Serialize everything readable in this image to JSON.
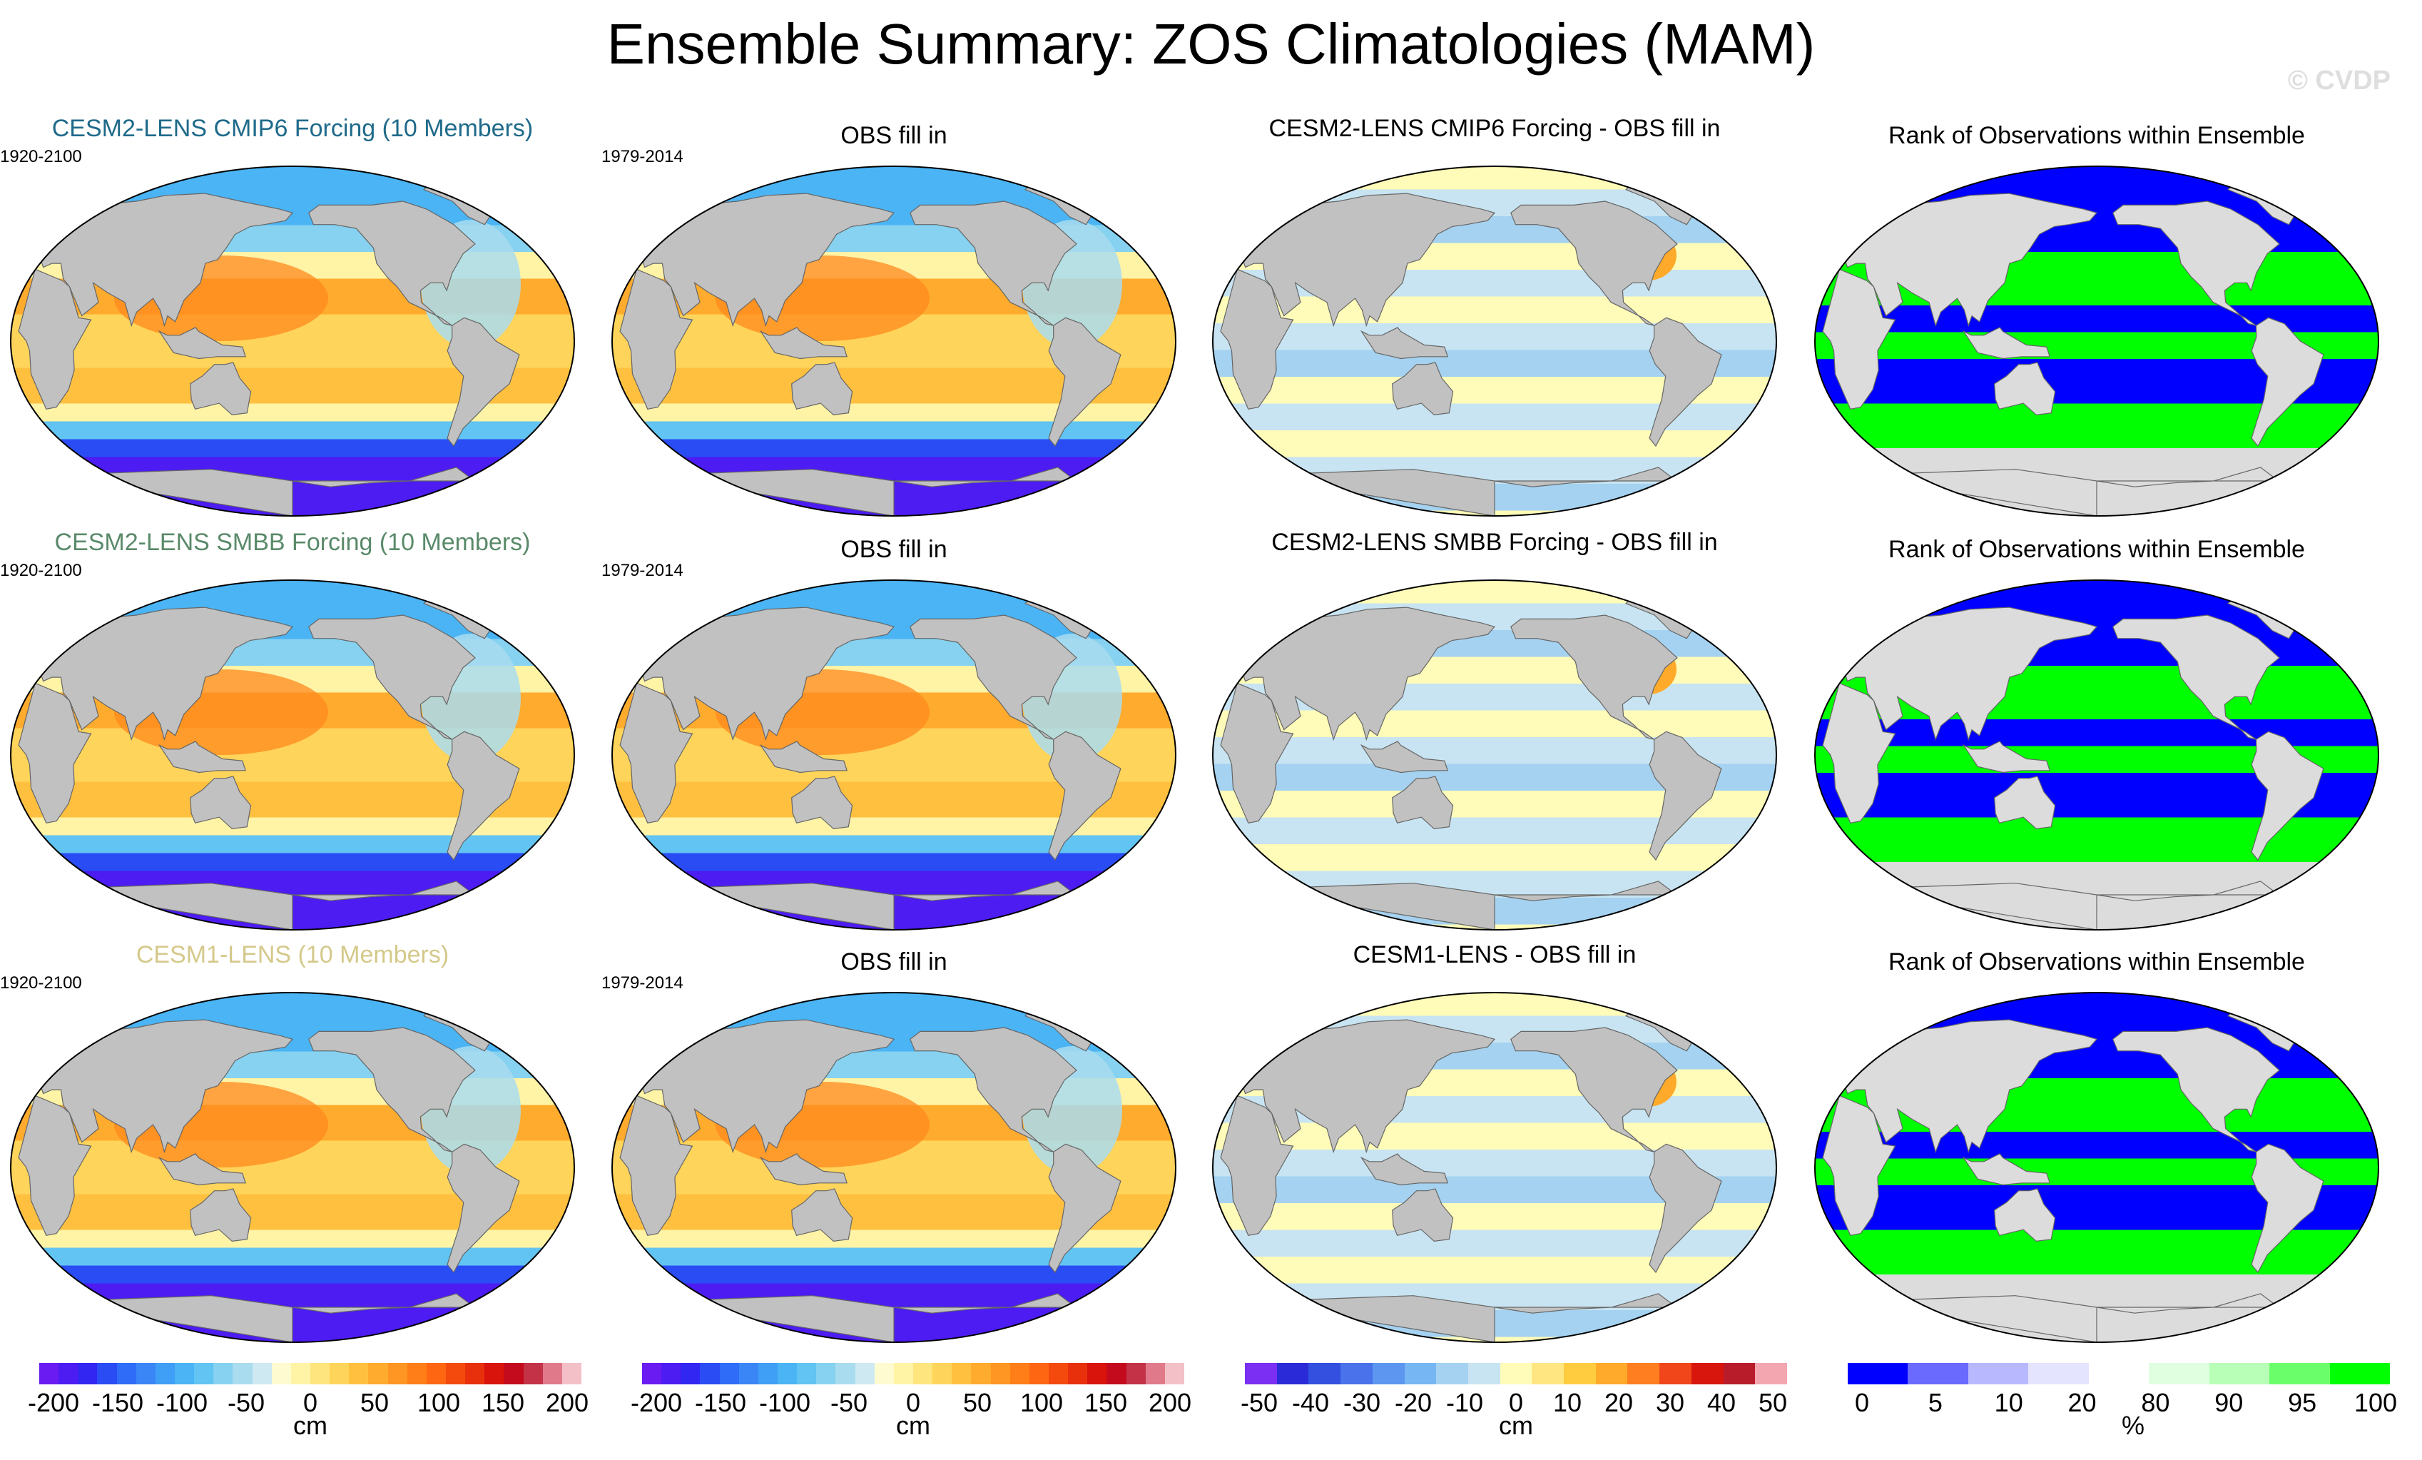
{
  "title": "Ensemble Summary: ZOS Climatologies (MAM)",
  "watermark": "© CVDP",
  "colors": {
    "land": "#c1c1c1",
    "rank_blue": "#0000ff",
    "rank_green": "#00ff00",
    "rank_gray": "#dcdcdc",
    "row1_title": "#1f6a8a",
    "row2_title": "#5a8a6a",
    "row3_title": "#d4c98a"
  },
  "rows": [
    {
      "ensemble": {
        "title": "CESM2-LENS CMIP6 Forcing (10 Members)",
        "period": "1920-2100",
        "color": "#1f6a8a"
      },
      "obs": {
        "title": "OBS fill in",
        "period": "1979-2014"
      },
      "diff": {
        "title": "CESM2-LENS CMIP6 Forcing - OBS fill in"
      },
      "rank": {
        "title": "Rank of Observations within Ensemble"
      }
    },
    {
      "ensemble": {
        "title": "CESM2-LENS SMBB Forcing (10 Members)",
        "period": "1920-2100",
        "color": "#5a8a6a"
      },
      "obs": {
        "title": "OBS fill in",
        "period": "1979-2014"
      },
      "diff": {
        "title": "CESM2-LENS SMBB Forcing - OBS fill in"
      },
      "rank": {
        "title": "Rank of Observations within Ensemble"
      }
    },
    {
      "ensemble": {
        "title": "CESM1-LENS (10 Members)",
        "period": "1920-2100",
        "color": "#d4c98a"
      },
      "obs": {
        "title": "OBS fill in",
        "period": "1979-2014"
      },
      "diff": {
        "title": "CESM1-LENS - OBS fill in"
      },
      "rank": {
        "title": "Rank of Observations within Ensemble"
      }
    }
  ],
  "colorbars": [
    {
      "unit": "cm",
      "ticks": [
        "-200",
        "-150",
        "-100",
        "-50",
        "0",
        "50",
        "100",
        "150",
        "200"
      ],
      "colors": [
        "#6a1bf2",
        "#4c1cf2",
        "#3226f2",
        "#2a4cf5",
        "#2f6cf7",
        "#3a86f7",
        "#3f9ef6",
        "#4ab4f4",
        "#62c4f2",
        "#86d2f0",
        "#a9dcee",
        "#cfe9f3",
        "#fffbd0",
        "#fff3a6",
        "#ffe57d",
        "#ffd45a",
        "#ffc040",
        "#ffab2e",
        "#ff9522",
        "#ff7e18",
        "#ff6612",
        "#f44a0e",
        "#e8300c",
        "#d8140c",
        "#c40b1e",
        "#c43248",
        "#e07a8a",
        "#f4c0c8"
      ]
    },
    {
      "unit": "cm",
      "ticks": [
        "-200",
        "-150",
        "-100",
        "-50",
        "0",
        "50",
        "100",
        "150",
        "200"
      ],
      "colors": [
        "#6a1bf2",
        "#4c1cf2",
        "#3226f2",
        "#2a4cf5",
        "#2f6cf7",
        "#3a86f7",
        "#3f9ef6",
        "#4ab4f4",
        "#62c4f2",
        "#86d2f0",
        "#a9dcee",
        "#cfe9f3",
        "#fffbd0",
        "#fff3a6",
        "#ffe57d",
        "#ffd45a",
        "#ffc040",
        "#ffab2e",
        "#ff9522",
        "#ff7e18",
        "#ff6612",
        "#f44a0e",
        "#e8300c",
        "#d8140c",
        "#c40b1e",
        "#c43248",
        "#e07a8a",
        "#f4c0c8"
      ]
    },
    {
      "unit": "cm",
      "ticks": [
        "-50",
        "-40",
        "-30",
        "-20",
        "-10",
        "0",
        "10",
        "20",
        "30",
        "40",
        "50"
      ],
      "colors": [
        "#7b2ff2",
        "#2a2ad8",
        "#3350e0",
        "#4a72ea",
        "#5c96f0",
        "#76b6f2",
        "#a4d2f0",
        "#c8e4f2",
        "#fffbb8",
        "#ffe680",
        "#ffcc40",
        "#ffaa2a",
        "#ff7e20",
        "#f0461a",
        "#d8160e",
        "#b81c2a",
        "#f4a6b0"
      ]
    },
    {
      "unit": "%",
      "ticks": [
        "0",
        "5",
        "10",
        "20",
        "80",
        "90",
        "95",
        "100"
      ],
      "colors": [
        "#0000ff",
        "#6a6aff",
        "#b8b8ff",
        "#e4e4ff",
        "#ffffff",
        "#e0ffe0",
        "#b8ffb8",
        "#6aff6a",
        "#00ff00"
      ]
    }
  ]
}
